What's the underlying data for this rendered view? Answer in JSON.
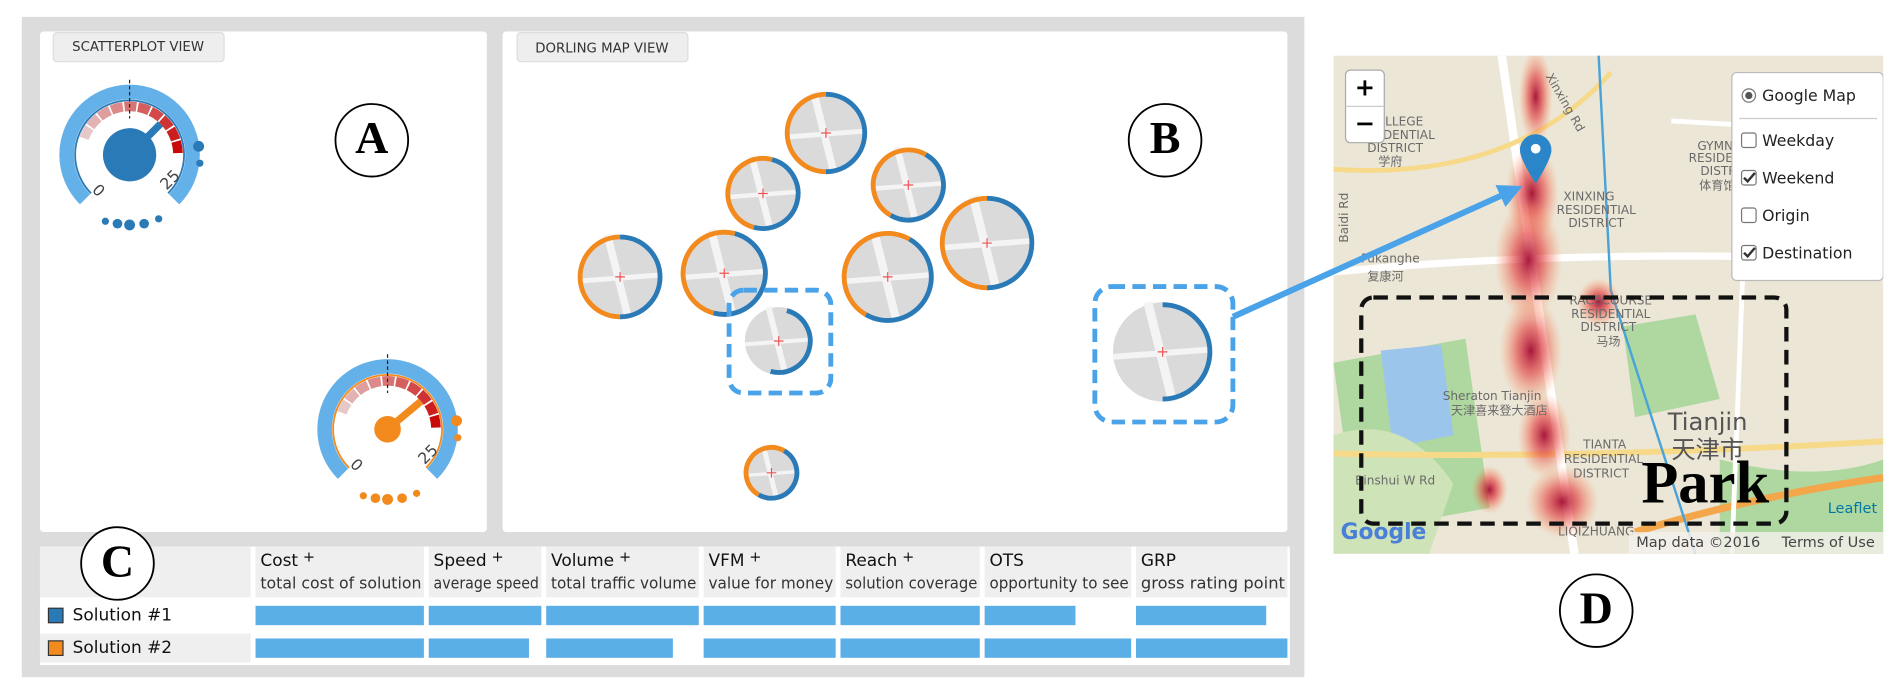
{
  "panels": {
    "a": "A",
    "b": "B",
    "c": "C",
    "d": "D"
  },
  "scatterplot": {
    "title": "SCATTERPLOT VIEW",
    "gauges": [
      {
        "min_label": "0",
        "max_label": "25",
        "color": "#2a7ab8"
      },
      {
        "min_label": "0",
        "max_label": "25",
        "color": "#f28a1e"
      }
    ]
  },
  "dorling": {
    "title": "DORLING MAP VIEW"
  },
  "table": {
    "columns": [
      {
        "name": "Cost",
        "sign": "+",
        "description": "total cost of solution"
      },
      {
        "name": "Speed",
        "sign": "+",
        "description": "average speed"
      },
      {
        "name": "Volume",
        "sign": "+",
        "description": "total traffic volume"
      },
      {
        "name": "VFM",
        "sign": "+",
        "description": "value for money"
      },
      {
        "name": "Reach",
        "sign": "+",
        "description": "solution coverage"
      },
      {
        "name": "OTS",
        "description": "opportunity to see"
      },
      {
        "name": "GRP",
        "description": "gross rating point"
      }
    ],
    "bar_color": "#5aafe6",
    "rows": [
      {
        "name": "Solution #1",
        "color": "#2a7ab8",
        "bars": [
          100,
          100,
          100,
          100,
          100,
          62,
          86
        ]
      },
      {
        "name": "Solution #2",
        "color": "#f28a1e",
        "bars": [
          100,
          89,
          83,
          100,
          100,
          100,
          100
        ]
      }
    ]
  },
  "map": {
    "zoom_in": "+",
    "zoom_out": "−",
    "layers": [
      {
        "label": "Google Map",
        "type": "radio",
        "checked": true
      },
      {
        "label": "Weekday",
        "type": "checkbox",
        "checked": false
      },
      {
        "label": "Weekend",
        "type": "checkbox",
        "checked": true
      },
      {
        "label": "Origin",
        "type": "checkbox",
        "checked": false
      },
      {
        "label": "Destination",
        "type": "checkbox",
        "checked": true
      }
    ],
    "places": [
      "COLLEGE",
      "RESIDENTIAL",
      "DISTRICT",
      "学府",
      "Xinxing Rd",
      "XINXING",
      "RESIDENTIAL",
      "DISTRICT",
      "GYMNASIU",
      "RESIDENTIAL",
      "DISTRICT",
      "体育馆",
      "Baidi Rd",
      "Fukanghe",
      "复康河",
      "RACECOURSE",
      "RESIDENTIAL",
      "DISTRICT",
      "马场",
      "Sheraton Tianjin",
      "天津喜来登大酒店",
      "Tianjin",
      "天津市",
      "TIANTA",
      "RESIDENTIAL",
      "DISTRICT",
      "Binshui W Rd",
      "LIQIZHUANG"
    ],
    "annotation": "Park",
    "leaflet": "Leaflet",
    "google": "Google",
    "map_data": "Map data ©2016",
    "terms": "Terms of Use"
  }
}
